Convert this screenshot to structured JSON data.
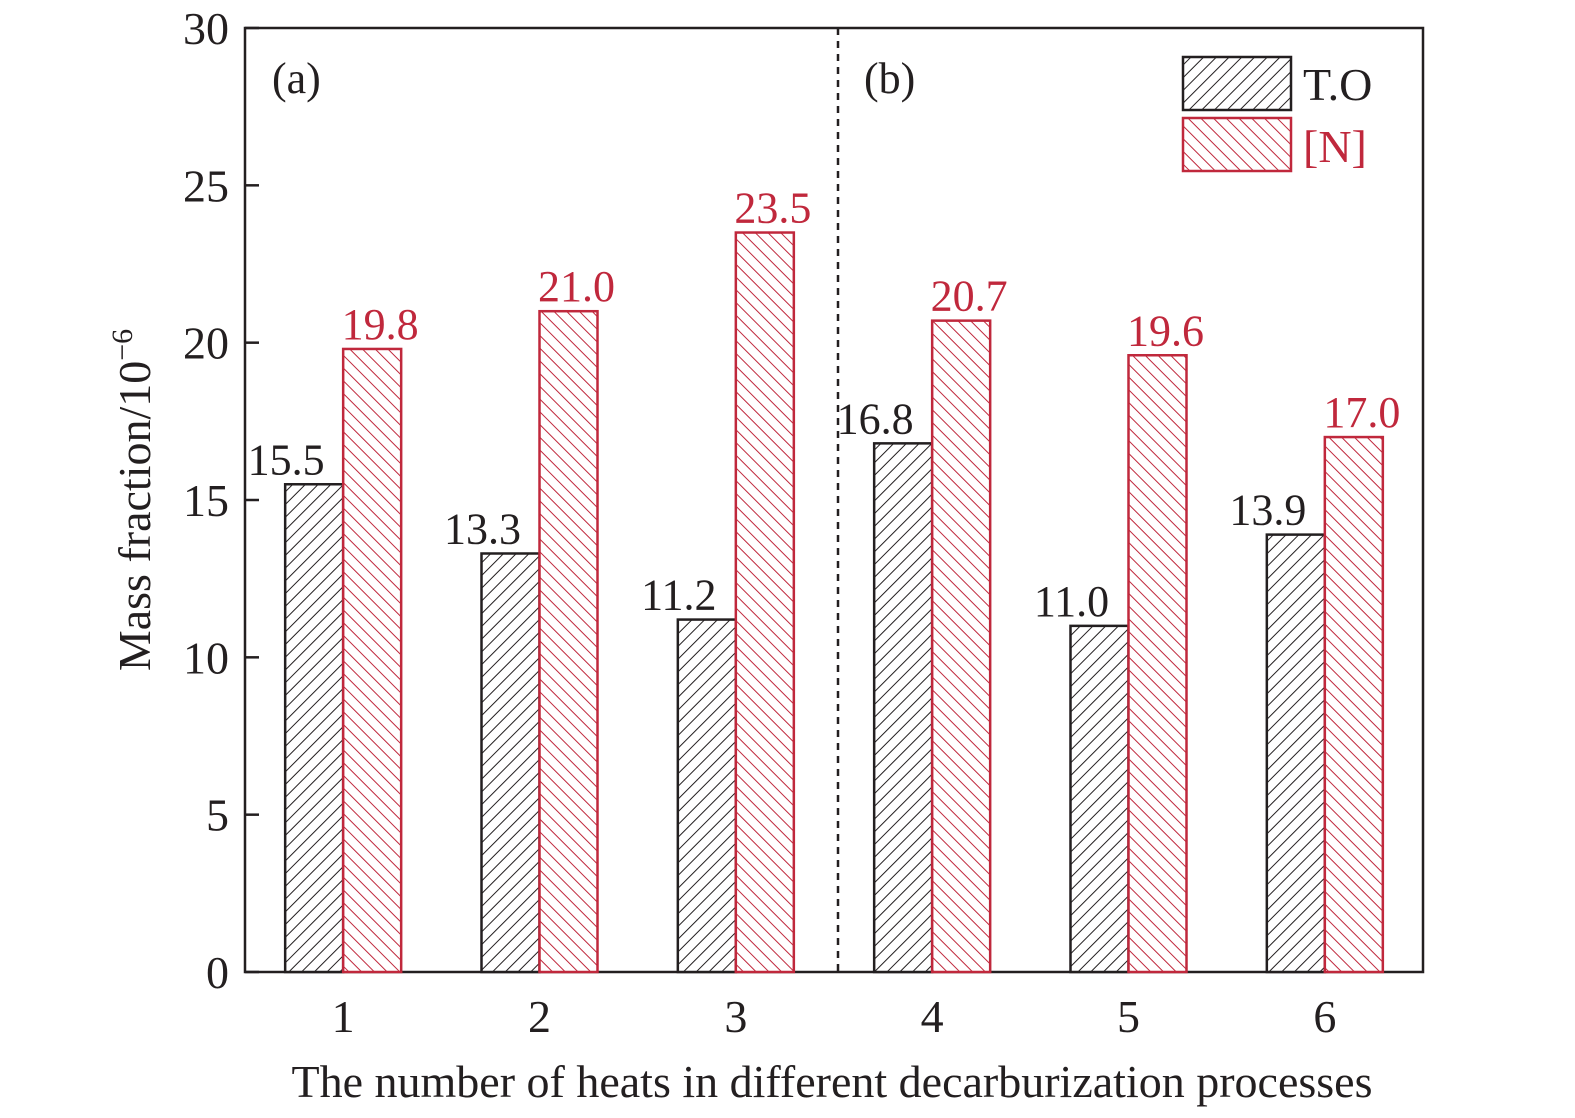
{
  "chart_data": {
    "type": "bar",
    "xlabel": "The number of heats in different decarburization processes",
    "ylabel_main": "Mass fraction/10",
    "ylabel_sup": "−6",
    "ylim": [
      0,
      30
    ],
    "yticks": [
      0,
      5,
      10,
      15,
      20,
      25,
      30
    ],
    "categories": [
      "1",
      "2",
      "3",
      "4",
      "5",
      "6"
    ],
    "series": [
      {
        "name": "T.O",
        "values": [
          15.5,
          13.3,
          11.2,
          16.8,
          11.0,
          13.9
        ],
        "labels": [
          "15.5",
          "13.3",
          "11.2",
          "16.8",
          "11.0",
          "13.9"
        ],
        "color": "#231f20"
      },
      {
        "name": "[N]",
        "values": [
          19.8,
          21.0,
          23.5,
          20.7,
          19.6,
          17.0
        ],
        "labels": [
          "19.8",
          "21.0",
          "23.5",
          "20.7",
          "19.6",
          "17.0"
        ],
        "color": "#c0283c"
      }
    ],
    "panels": [
      {
        "label": "(a)",
        "categories": [
          "1",
          "2",
          "3"
        ]
      },
      {
        "label": "(b)",
        "categories": [
          "4",
          "5",
          "6"
        ]
      }
    ],
    "divider_after_category": "3",
    "legend_position": "top-right",
    "grid": false
  }
}
